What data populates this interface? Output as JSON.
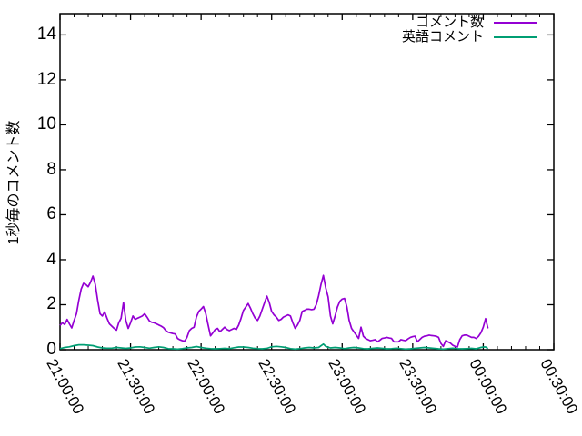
{
  "chart_data": {
    "type": "line",
    "title": "",
    "xlabel": "",
    "ylabel": "1秒毎のコメント数",
    "grid": false,
    "legend_position": "top-right-inside",
    "background_color": "#ffffff",
    "axis_color": "#000000",
    "x_axis": {
      "tick_labels": [
        "21:00:00",
        "21:30:00",
        "22:00:00",
        "22:30:00",
        "23:00:00",
        "23:30:00",
        "00:00:00",
        "00:30:00"
      ],
      "tick_minutes": [
        0,
        30,
        60,
        90,
        120,
        150,
        180,
        210
      ],
      "minor_tick_every_min": 6,
      "range_minutes": [
        0,
        210
      ],
      "label_rotation_deg": 61
    },
    "y_axis": {
      "ticks": [
        0,
        2,
        4,
        6,
        8,
        10,
        12,
        14
      ],
      "range": [
        0,
        14.95
      ]
    },
    "series": [
      {
        "name": "コメント数",
        "color": "#9400d3",
        "points": [
          [
            0,
            1.08
          ],
          [
            1,
            1.2
          ],
          [
            2,
            1.12
          ],
          [
            3,
            1.35
          ],
          [
            4,
            1.15
          ],
          [
            5,
            0.97
          ],
          [
            6,
            1.3
          ],
          [
            7,
            1.6
          ],
          [
            8,
            2.2
          ],
          [
            9,
            2.7
          ],
          [
            10,
            2.95
          ],
          [
            11,
            2.9
          ],
          [
            12,
            2.8
          ],
          [
            13,
            3.0
          ],
          [
            14,
            3.27
          ],
          [
            15,
            2.9
          ],
          [
            16,
            2.2
          ],
          [
            17,
            1.6
          ],
          [
            18,
            1.5
          ],
          [
            19,
            1.68
          ],
          [
            20,
            1.4
          ],
          [
            21,
            1.15
          ],
          [
            22,
            1.05
          ],
          [
            23,
            0.95
          ],
          [
            24,
            0.87
          ],
          [
            25,
            1.2
          ],
          [
            26,
            1.4
          ],
          [
            27,
            2.1
          ],
          [
            28,
            1.3
          ],
          [
            29,
            0.95
          ],
          [
            30,
            1.2
          ],
          [
            31,
            1.5
          ],
          [
            32,
            1.35
          ],
          [
            33,
            1.4
          ],
          [
            34,
            1.45
          ],
          [
            35,
            1.5
          ],
          [
            36,
            1.6
          ],
          [
            37,
            1.45
          ],
          [
            38,
            1.28
          ],
          [
            39,
            1.22
          ],
          [
            40,
            1.2
          ],
          [
            41,
            1.15
          ],
          [
            42,
            1.1
          ],
          [
            43,
            1.05
          ],
          [
            44,
            0.98
          ],
          [
            45,
            0.85
          ],
          [
            46,
            0.78
          ],
          [
            47,
            0.75
          ],
          [
            48,
            0.72
          ],
          [
            49,
            0.7
          ],
          [
            50,
            0.5
          ],
          [
            51,
            0.44
          ],
          [
            52,
            0.4
          ],
          [
            53,
            0.38
          ],
          [
            54,
            0.55
          ],
          [
            55,
            0.85
          ],
          [
            56,
            0.95
          ],
          [
            57,
            1.0
          ],
          [
            58,
            1.45
          ],
          [
            59,
            1.7
          ],
          [
            60,
            1.8
          ],
          [
            61,
            1.92
          ],
          [
            62,
            1.6
          ],
          [
            63,
            1.1
          ],
          [
            64,
            0.62
          ],
          [
            65,
            0.75
          ],
          [
            66,
            0.9
          ],
          [
            67,
            0.95
          ],
          [
            68,
            0.8
          ],
          [
            69,
            0.9
          ],
          [
            70,
            1.0
          ],
          [
            71,
            0.9
          ],
          [
            72,
            0.85
          ],
          [
            73,
            0.9
          ],
          [
            74,
            0.95
          ],
          [
            75,
            0.9
          ],
          [
            76,
            1.1
          ],
          [
            77,
            1.4
          ],
          [
            78,
            1.75
          ],
          [
            79,
            1.9
          ],
          [
            80,
            2.05
          ],
          [
            81,
            1.85
          ],
          [
            82,
            1.6
          ],
          [
            83,
            1.4
          ],
          [
            84,
            1.3
          ],
          [
            85,
            1.5
          ],
          [
            86,
            1.8
          ],
          [
            87,
            2.1
          ],
          [
            88,
            2.38
          ],
          [
            89,
            2.1
          ],
          [
            90,
            1.7
          ],
          [
            91,
            1.55
          ],
          [
            92,
            1.45
          ],
          [
            93,
            1.3
          ],
          [
            94,
            1.35
          ],
          [
            95,
            1.45
          ],
          [
            96,
            1.5
          ],
          [
            97,
            1.55
          ],
          [
            98,
            1.5
          ],
          [
            99,
            1.2
          ],
          [
            100,
            0.95
          ],
          [
            101,
            1.1
          ],
          [
            102,
            1.3
          ],
          [
            103,
            1.7
          ],
          [
            104,
            1.75
          ],
          [
            105,
            1.8
          ],
          [
            106,
            1.8
          ],
          [
            107,
            1.78
          ],
          [
            108,
            1.8
          ],
          [
            109,
            2.0
          ],
          [
            110,
            2.4
          ],
          [
            111,
            2.9
          ],
          [
            112,
            3.3
          ],
          [
            113,
            2.75
          ],
          [
            114,
            2.35
          ],
          [
            115,
            1.5
          ],
          [
            116,
            1.15
          ],
          [
            117,
            1.5
          ],
          [
            118,
            1.9
          ],
          [
            119,
            2.15
          ],
          [
            120,
            2.25
          ],
          [
            121,
            2.28
          ],
          [
            122,
            1.9
          ],
          [
            123,
            1.3
          ],
          [
            124,
            0.95
          ],
          [
            125,
            0.8
          ],
          [
            126,
            0.65
          ],
          [
            127,
            0.5
          ],
          [
            128,
            1.0
          ],
          [
            129,
            0.6
          ],
          [
            130,
            0.5
          ],
          [
            131,
            0.45
          ],
          [
            132,
            0.4
          ],
          [
            133,
            0.42
          ],
          [
            134,
            0.45
          ],
          [
            135,
            0.35
          ],
          [
            136,
            0.42
          ],
          [
            137,
            0.5
          ],
          [
            138,
            0.52
          ],
          [
            139,
            0.55
          ],
          [
            140,
            0.52
          ],
          [
            141,
            0.5
          ],
          [
            142,
            0.35
          ],
          [
            143,
            0.35
          ],
          [
            144,
            0.35
          ],
          [
            145,
            0.45
          ],
          [
            146,
            0.42
          ],
          [
            147,
            0.4
          ],
          [
            148,
            0.48
          ],
          [
            149,
            0.55
          ],
          [
            150,
            0.58
          ],
          [
            151,
            0.6
          ],
          [
            152,
            0.35
          ],
          [
            153,
            0.45
          ],
          [
            154,
            0.55
          ],
          [
            155,
            0.6
          ],
          [
            156,
            0.62
          ],
          [
            157,
            0.65
          ],
          [
            158,
            0.63
          ],
          [
            159,
            0.62
          ],
          [
            160,
            0.6
          ],
          [
            161,
            0.55
          ],
          [
            162,
            0.28
          ],
          [
            163,
            0.15
          ],
          [
            164,
            0.4
          ],
          [
            165,
            0.35
          ],
          [
            166,
            0.3
          ],
          [
            167,
            0.2
          ],
          [
            168,
            0.15
          ],
          [
            169,
            0.12
          ],
          [
            170,
            0.45
          ],
          [
            171,
            0.62
          ],
          [
            172,
            0.65
          ],
          [
            173,
            0.65
          ],
          [
            174,
            0.6
          ],
          [
            175,
            0.55
          ],
          [
            176,
            0.55
          ],
          [
            177,
            0.5
          ],
          [
            178,
            0.6
          ],
          [
            179,
            0.75
          ],
          [
            180,
            1.0
          ],
          [
            181,
            1.38
          ],
          [
            182,
            0.95
          ]
        ]
      },
      {
        "name": "英語コメント",
        "color": "#009e73",
        "points": [
          [
            0,
            0.05
          ],
          [
            2,
            0.1
          ],
          [
            4,
            0.13
          ],
          [
            6,
            0.18
          ],
          [
            8,
            0.22
          ],
          [
            10,
            0.22
          ],
          [
            12,
            0.2
          ],
          [
            14,
            0.18
          ],
          [
            16,
            0.12
          ],
          [
            18,
            0.08
          ],
          [
            20,
            0.07
          ],
          [
            22,
            0.07
          ],
          [
            24,
            0.1
          ],
          [
            26,
            0.08
          ],
          [
            28,
            0.06
          ],
          [
            30,
            0.08
          ],
          [
            32,
            0.12
          ],
          [
            34,
            0.13
          ],
          [
            36,
            0.1
          ],
          [
            38,
            0.07
          ],
          [
            40,
            0.1
          ],
          [
            42,
            0.13
          ],
          [
            44,
            0.1
          ],
          [
            46,
            0.05
          ],
          [
            48,
            0.04
          ],
          [
            50,
            0.03
          ],
          [
            52,
            0.05
          ],
          [
            54,
            0.08
          ],
          [
            56,
            0.1
          ],
          [
            58,
            0.14
          ],
          [
            60,
            0.1
          ],
          [
            62,
            0.07
          ],
          [
            64,
            0.05
          ],
          [
            66,
            0.04
          ],
          [
            68,
            0.05
          ],
          [
            70,
            0.06
          ],
          [
            72,
            0.05
          ],
          [
            74,
            0.09
          ],
          [
            76,
            0.12
          ],
          [
            78,
            0.12
          ],
          [
            80,
            0.1
          ],
          [
            82,
            0.07
          ],
          [
            84,
            0.05
          ],
          [
            86,
            0.04
          ],
          [
            88,
            0.06
          ],
          [
            90,
            0.13
          ],
          [
            92,
            0.15
          ],
          [
            94,
            0.13
          ],
          [
            96,
            0.1
          ],
          [
            98,
            0.05
          ],
          [
            100,
            0.03
          ],
          [
            102,
            0.05
          ],
          [
            104,
            0.08
          ],
          [
            106,
            0.1
          ],
          [
            108,
            0.08
          ],
          [
            110,
            0.1
          ],
          [
            112,
            0.25
          ],
          [
            113,
            0.15
          ],
          [
            115,
            0.08
          ],
          [
            117,
            0.1
          ],
          [
            119,
            0.08
          ],
          [
            121,
            0.05
          ],
          [
            123,
            0.08
          ],
          [
            125,
            0.1
          ],
          [
            127,
            0.08
          ],
          [
            129,
            0.05
          ],
          [
            131,
            0.04
          ],
          [
            133,
            0.06
          ],
          [
            135,
            0.08
          ],
          [
            137,
            0.06
          ],
          [
            139,
            0.04
          ],
          [
            141,
            0.05
          ],
          [
            143,
            0.07
          ],
          [
            145,
            0.05
          ],
          [
            147,
            0.03
          ],
          [
            149,
            0.04
          ],
          [
            151,
            0.06
          ],
          [
            153,
            0.08
          ],
          [
            155,
            0.1
          ],
          [
            157,
            0.08
          ],
          [
            159,
            0.06
          ],
          [
            161,
            0.04
          ],
          [
            163,
            0.03
          ],
          [
            165,
            0.05
          ],
          [
            167,
            0.07
          ],
          [
            169,
            0.05
          ],
          [
            171,
            0.04
          ],
          [
            173,
            0.05
          ],
          [
            175,
            0.06
          ],
          [
            177,
            0.04
          ],
          [
            179,
            0.1
          ],
          [
            180,
            0.12
          ],
          [
            181,
            0.12
          ],
          [
            182,
            0.05
          ]
        ]
      }
    ]
  }
}
